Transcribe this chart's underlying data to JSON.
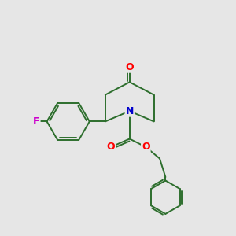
{
  "background_color": "#e6e6e6",
  "bond_color": "#2d6e2d",
  "atom_colors": {
    "O": "#ff0000",
    "N": "#0000cc",
    "F": "#cc00cc"
  },
  "figsize": [
    3.0,
    3.0
  ],
  "dpi": 100
}
